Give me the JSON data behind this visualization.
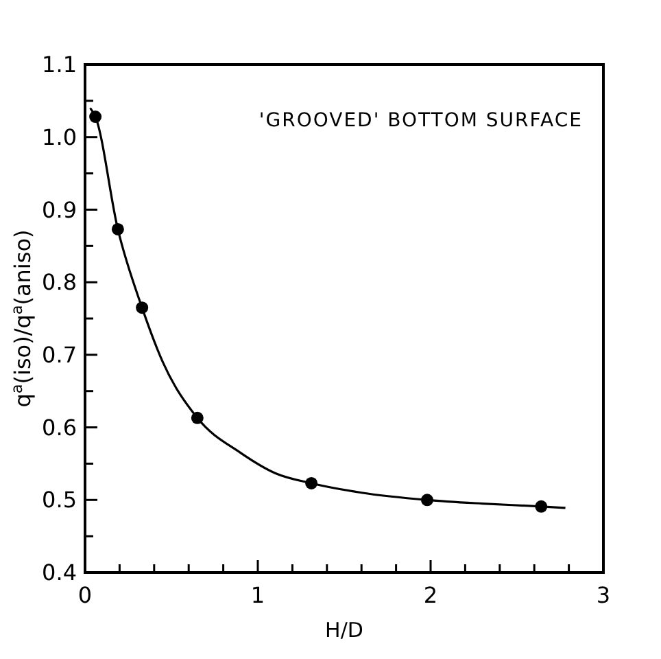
{
  "chart_data": {
    "type": "scatter",
    "xlabel": "H/D",
    "ylabel": "q$^{a}$(iso)/q$^{a}$(aniso)",
    "annotations": [
      "'GROOVED' BOTTOM SURFACE"
    ],
    "xlim": [
      0,
      3
    ],
    "ylim": [
      0.4,
      1.1
    ],
    "xticks": [
      0,
      {
        "value": 0.2,
        "label": null
      },
      {
        "value": 0.4,
        "label": null
      },
      {
        "value": 0.6,
        "label": null
      },
      {
        "value": 0.8,
        "label": null
      },
      1,
      {
        "value": 1.2,
        "label": null
      },
      {
        "value": 1.4,
        "label": null
      },
      {
        "value": 1.6,
        "label": null
      },
      {
        "value": 1.8,
        "label": null
      },
      2,
      {
        "value": 2.2,
        "label": null
      },
      {
        "value": 2.4,
        "label": null
      },
      {
        "value": 2.6,
        "label": null
      },
      {
        "value": 2.8,
        "label": null
      },
      3
    ],
    "yticks": [
      0.4,
      {
        "value": 0.45,
        "label": null
      },
      {
        "value": 0.5,
        "label": "0.5"
      },
      {
        "value": 0.55,
        "label": null
      },
      {
        "value": 0.6,
        "label": "0.6"
      },
      {
        "value": 0.65,
        "label": null
      },
      {
        "value": 0.7,
        "label": "0.7"
      },
      {
        "value": 0.75,
        "label": null
      },
      {
        "value": 0.8,
        "label": "0.8"
      },
      {
        "value": 0.85,
        "label": null
      },
      {
        "value": 0.9,
        "label": "0.9"
      },
      {
        "value": 0.95,
        "label": null
      },
      {
        "value": 1.0,
        "label": "1.0"
      },
      {
        "value": 1.05,
        "label": null
      },
      1.1
    ],
    "grid": false,
    "series": [
      {
        "type": "line",
        "color": "#000000",
        "marker": "none",
        "line_style": "solid",
        "x": [
          0.03,
          0.06,
          0.19,
          0.33,
          0.45,
          0.65,
          0.9,
          1.1,
          1.31,
          1.6,
          1.98,
          2.3,
          2.64,
          2.78
        ],
        "values": [
          1.04,
          1.028,
          0.873,
          0.765,
          0.69,
          0.613,
          0.565,
          0.537,
          0.523,
          0.51,
          0.5,
          0.495,
          0.491,
          0.489
        ]
      },
      {
        "color": "#000000",
        "marker": "circle",
        "x": [
          0.06,
          0.19,
          0.33,
          0.65,
          1.31,
          1.98,
          2.64
        ],
        "values": [
          1.028,
          0.873,
          0.765,
          0.613,
          0.523,
          0.5,
          0.491
        ]
      }
    ]
  }
}
